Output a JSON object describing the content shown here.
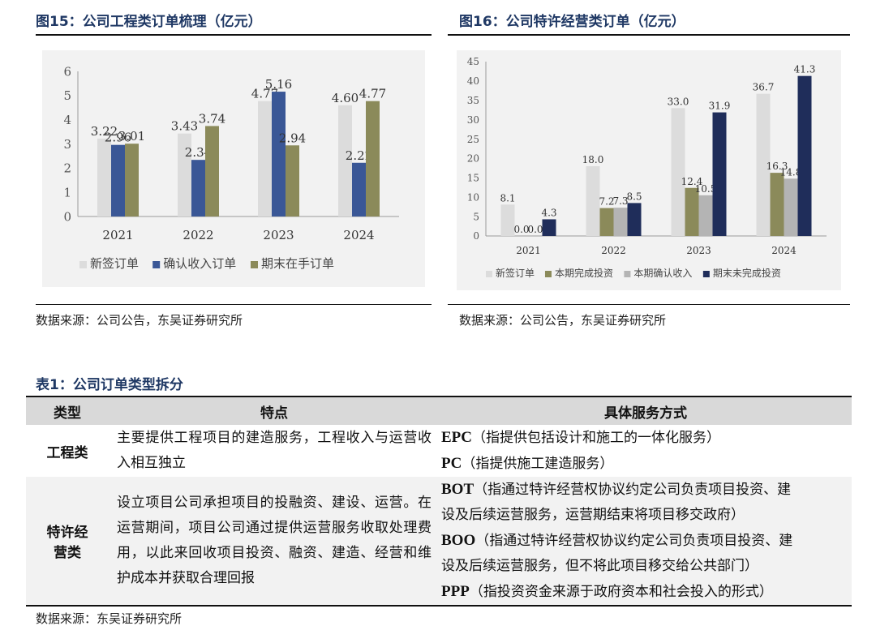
{
  "fig15": {
    "title": "图15：公司工程类订单梳理（亿元）",
    "source": "数据来源：公司公告，东吴证券研究所"
  },
  "fig16": {
    "title": "图16：公司特许经营类订单（亿元）",
    "source": "数据来源：公司公告，东吴证券研究所"
  },
  "chart_data": [
    {
      "type": "bar",
      "categories": [
        "2021",
        "2022",
        "2023",
        "2024"
      ],
      "ylim": [
        0,
        6
      ],
      "yticks": [
        "0",
        "1",
        "2",
        "3",
        "4",
        "5",
        "6"
      ],
      "legend_position": "bottom",
      "grid": false,
      "series": [
        {
          "name": "新签订单",
          "color": "#dcdcdc",
          "values": [
            3.22,
            3.43,
            4.77,
            4.6
          ],
          "labels": [
            "3.22",
            "3.43",
            "4.77",
            "4.60"
          ]
        },
        {
          "name": "确认收入订单",
          "color": "#3a5796",
          "values": [
            2.96,
            2.34,
            5.16,
            2.22
          ],
          "labels": [
            "2.96",
            "2.34",
            "5.16",
            "2.22"
          ]
        },
        {
          "name": "期末在手订单",
          "color": "#8b8a5a",
          "values": [
            3.01,
            3.74,
            2.94,
            4.77
          ],
          "labels": [
            "3.01",
            "3.74",
            "2.94",
            "4.77"
          ]
        }
      ]
    },
    {
      "type": "bar",
      "categories": [
        "2021",
        "2022",
        "2023",
        "2024"
      ],
      "ylim": [
        0,
        45
      ],
      "yticks": [
        "0",
        "5",
        "10",
        "15",
        "20",
        "25",
        "30",
        "35",
        "40",
        "45"
      ],
      "legend_position": "bottom",
      "grid": false,
      "series": [
        {
          "name": "新签订单",
          "color": "#dcdcdc",
          "values": [
            8.1,
            18.0,
            33.0,
            36.7
          ],
          "labels": [
            "8.1",
            "18.0",
            "33.0",
            "36.7"
          ]
        },
        {
          "name": "本期完成投资",
          "color": "#8b8a5a",
          "values": [
            0.0,
            7.2,
            12.4,
            16.3
          ],
          "labels": [
            "0.0",
            "7.2",
            "12.4",
            "16.3"
          ]
        },
        {
          "name": "本期确认收入",
          "color": "#b4b4b4",
          "values": [
            0.0,
            7.3,
            10.5,
            14.8
          ],
          "labels": [
            "0.0",
            "7.3",
            "10.5",
            "14.8"
          ]
        },
        {
          "name": "期末未完成投资",
          "color": "#1f2d5a",
          "values": [
            4.3,
            8.5,
            31.9,
            41.3
          ],
          "labels": [
            "4.3",
            "8.5",
            "31.9",
            "41.3"
          ]
        }
      ]
    }
  ],
  "table1": {
    "title": "表1：公司订单类型拆分",
    "headers": [
      "类型",
      "特点",
      "具体服务方式"
    ],
    "rows": [
      {
        "type_lines": [
          "工程类"
        ],
        "feature": "主要提供工程项目的建造服务，工程收入与运营收入相互独立",
        "services": [
          {
            "code": "EPC",
            "lines": [
              "（指提供包括设计和施工的一体化服务）"
            ]
          },
          {
            "code": "PC",
            "lines": [
              "（指提供施工建造服务）"
            ]
          }
        ]
      },
      {
        "type_lines": [
          "特许经",
          "营类"
        ],
        "feature": "设立项目公司承担项目的投融资、建设、运营。在运营期间，项目公司通过提供运营服务收取处理费用，以此来回收项目投资、融资、建造、经营和维护成本并获取合理回报",
        "services": [
          {
            "code": "BOT",
            "lines": [
              "（指通过特许经营权协议约定公司负责项目投资、建",
              "设及后续运营服务，运营期结束将项目移交政府）"
            ]
          },
          {
            "code": "BOO",
            "lines": [
              "（指通过特许经营权协议约定公司负责项目投资、建",
              "设及后续运营服务，但不将此项目移交给公共部门）"
            ]
          },
          {
            "code": "PPP",
            "lines": [
              "（指投资资金来源于政府资本和社会投入的形式）"
            ]
          }
        ]
      }
    ],
    "source": "数据来源：东吴证券研究所"
  }
}
